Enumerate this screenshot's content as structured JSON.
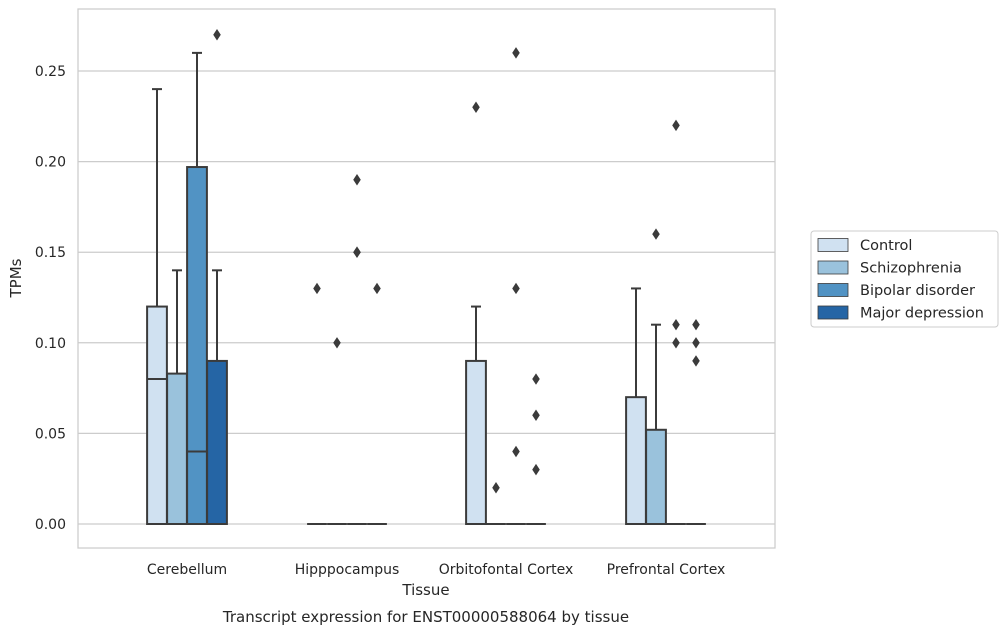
{
  "chart_data": {
    "type": "box",
    "title": "",
    "caption": "Transcript expression for ENST00000588064 by tissue",
    "xlabel": "Tissue",
    "ylabel": "TPMs",
    "ylim": [
      -0.013,
      0.284
    ],
    "yticks": [
      0.0,
      0.05,
      0.1,
      0.15,
      0.2,
      0.25
    ],
    "ytick_labels": [
      "0.00",
      "0.05",
      "0.10",
      "0.15",
      "0.20",
      "0.25"
    ],
    "grid": "horizontal",
    "legend_position": "right",
    "categories": [
      "Cerebellum",
      "Hipppocampus",
      "Orbitofontal Cortex",
      "Prefrontal Cortex"
    ],
    "series": [
      {
        "name": "Control",
        "color": "#d0e1f1",
        "boxes": [
          {
            "q1": 0.0,
            "median": 0.08,
            "q3": 0.12,
            "whisker_low": 0.0,
            "whisker_high": 0.24,
            "outliers": []
          },
          {
            "q1": 0.0,
            "median": 0.0,
            "q3": 0.0,
            "whisker_low": 0.0,
            "whisker_high": 0.0,
            "outliers": [
              0.13
            ]
          },
          {
            "q1": 0.0,
            "median": 0.0,
            "q3": 0.09,
            "whisker_low": 0.0,
            "whisker_high": 0.12,
            "outliers": [
              0.23
            ]
          },
          {
            "q1": 0.0,
            "median": 0.0,
            "q3": 0.07,
            "whisker_low": 0.0,
            "whisker_high": 0.13,
            "outliers": []
          }
        ]
      },
      {
        "name": "Schizophrenia",
        "color": "#9ac2dc",
        "boxes": [
          {
            "q1": 0.0,
            "median": 0.0,
            "q3": 0.083,
            "whisker_low": 0.0,
            "whisker_high": 0.14,
            "outliers": []
          },
          {
            "q1": 0.0,
            "median": 0.0,
            "q3": 0.0,
            "whisker_low": 0.0,
            "whisker_high": 0.0,
            "outliers": [
              0.1
            ]
          },
          {
            "q1": 0.0,
            "median": 0.0,
            "q3": 0.0,
            "whisker_low": 0.0,
            "whisker_high": 0.0,
            "outliers": [
              0.02
            ]
          },
          {
            "q1": 0.0,
            "median": 0.0,
            "q3": 0.052,
            "whisker_low": 0.0,
            "whisker_high": 0.11,
            "outliers": [
              0.16
            ]
          }
        ]
      },
      {
        "name": "Bipolar disorder",
        "color": "#5193c4",
        "boxes": [
          {
            "q1": 0.0,
            "median": 0.04,
            "q3": 0.197,
            "whisker_low": 0.0,
            "whisker_high": 0.26,
            "outliers": []
          },
          {
            "q1": 0.0,
            "median": 0.0,
            "q3": 0.0,
            "whisker_low": 0.0,
            "whisker_high": 0.0,
            "outliers": [
              0.19,
              0.15,
              0.15
            ]
          },
          {
            "q1": 0.0,
            "median": 0.0,
            "q3": 0.0,
            "whisker_low": 0.0,
            "whisker_high": 0.0,
            "outliers": [
              0.26,
              0.13,
              0.04
            ]
          },
          {
            "q1": 0.0,
            "median": 0.0,
            "q3": 0.0,
            "whisker_low": 0.0,
            "whisker_high": 0.0,
            "outliers": [
              0.22,
              0.11,
              0.1
            ]
          }
        ]
      },
      {
        "name": "Major depression",
        "color": "#2565a5",
        "boxes": [
          {
            "q1": 0.0,
            "median": 0.0,
            "q3": 0.09,
            "whisker_low": 0.0,
            "whisker_high": 0.14,
            "outliers": [
              0.27
            ]
          },
          {
            "q1": 0.0,
            "median": 0.0,
            "q3": 0.0,
            "whisker_low": 0.0,
            "whisker_high": 0.0,
            "outliers": [
              0.13
            ]
          },
          {
            "q1": 0.0,
            "median": 0.0,
            "q3": 0.0,
            "whisker_low": 0.0,
            "whisker_high": 0.0,
            "outliers": [
              0.08,
              0.06,
              0.03
            ]
          },
          {
            "q1": 0.0,
            "median": 0.0,
            "q3": 0.0,
            "whisker_low": 0.0,
            "whisker_high": 0.0,
            "outliers": [
              0.11,
              0.1,
              0.09
            ]
          }
        ]
      }
    ]
  }
}
